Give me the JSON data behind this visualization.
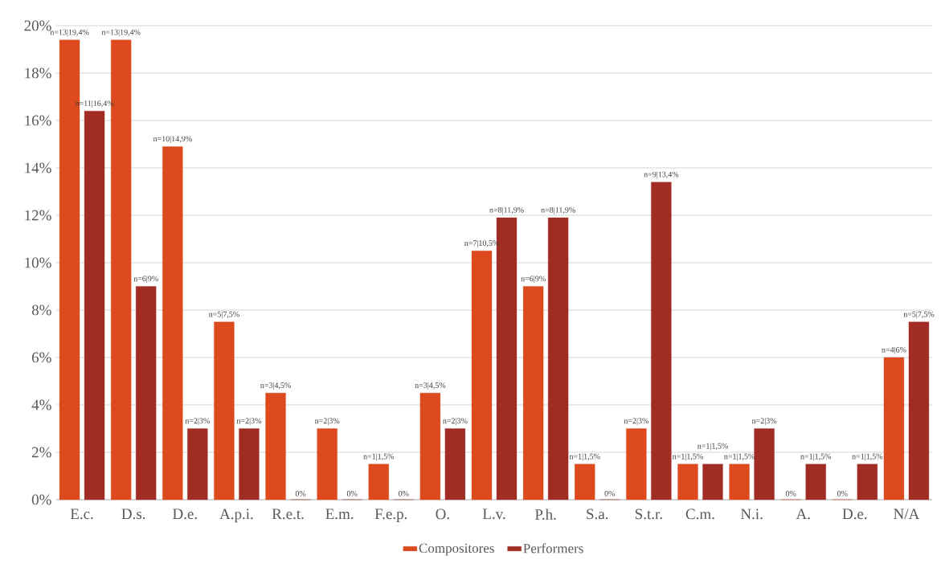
{
  "chart_data": {
    "type": "bar",
    "categories": [
      "E.c.",
      "D.s.",
      "D.e.",
      "A.p.i.",
      "R.e.t.",
      "E.m.",
      "F.e.p.",
      "O.",
      "L.v.",
      "P.h.",
      "S.a.",
      "S.t.r.",
      "C.m.",
      "N.i.",
      "A.",
      "D.e.",
      "N/A"
    ],
    "series": [
      {
        "name": "Compositores",
        "color": "#dc4a1e",
        "values": [
          19.4,
          19.4,
          14.9,
          7.5,
          4.5,
          3,
          1.5,
          4.5,
          10.5,
          9,
          1.5,
          3,
          1.5,
          1.5,
          0,
          0,
          6
        ],
        "value_labels": [
          "n=13|19,4%",
          "n=13|19,4%",
          "n=10|14,9%",
          "n=5|7,5%",
          "n=3|4,5%",
          "n=2|3%",
          "n=1|1,5%",
          "n=3|4,5%",
          "n=7|10,5%",
          "n=6|9%",
          "n=1|1,5%",
          "n=2|3%",
          "n=1|1,5%",
          "n=1|1,5%",
          "0%",
          "0%",
          "n=4|6%"
        ]
      },
      {
        "name": "Performers",
        "color": "#a02c24",
        "values": [
          16.4,
          9,
          3,
          3,
          0,
          0,
          0,
          3,
          11.9,
          11.9,
          0,
          13.4,
          1.5,
          3,
          1.5,
          1.5,
          7.5
        ],
        "value_labels": [
          "n=11|16,4%",
          "n=6|9%",
          "n=2|3%",
          "n=2|3%",
          "0%",
          "0%",
          "0%",
          "n=2|3%",
          "n=8|11,9%",
          "n=8|11,9%",
          "0%",
          "n=9|13,4%",
          "n=1|1,5%",
          "n=2|3%",
          "n=1|1,5%",
          "n=1|1,5%",
          "n=5|7,5%"
        ]
      }
    ],
    "ylim": [
      0,
      20
    ],
    "yticks": [
      {
        "value": 0,
        "label": "0%"
      },
      {
        "value": 2,
        "label": "2%"
      },
      {
        "value": 4,
        "label": "4%"
      },
      {
        "value": 6,
        "label": "6%"
      },
      {
        "value": 8,
        "label": "8%"
      },
      {
        "value": 10,
        "label": "10%"
      },
      {
        "value": 12,
        "label": "12%"
      },
      {
        "value": 14,
        "label": "14%"
      },
      {
        "value": 16,
        "label": "16%"
      },
      {
        "value": 18,
        "label": "18%"
      },
      {
        "value": 20,
        "label": "20%"
      }
    ],
    "grid": "y",
    "legend": "bottom"
  }
}
